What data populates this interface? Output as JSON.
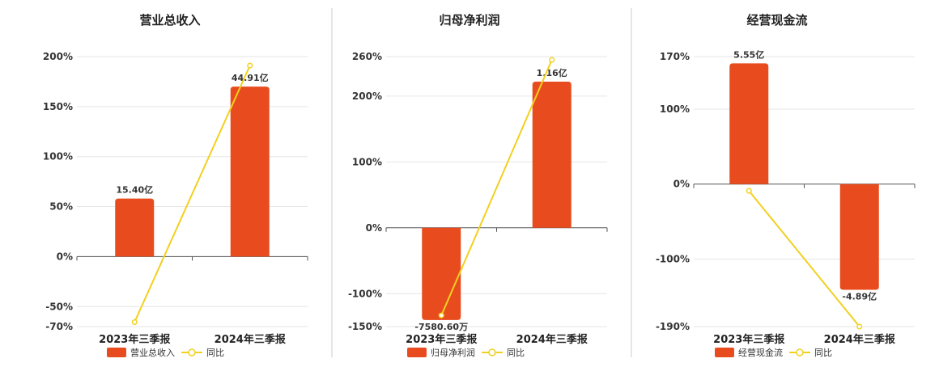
{
  "colors": {
    "bar": "#e84c1e",
    "line": "#f2d01f",
    "divider": "#cccccc"
  },
  "chart_data": [
    {
      "type": "bar",
      "title": "营业总收入",
      "categories": [
        "2023年三季报",
        "2024年三季报"
      ],
      "bar_labels": [
        "15.40亿",
        "44.91亿"
      ],
      "bar_values_pct": [
        58,
        170
      ],
      "line_values_pct": [
        -65.5,
        191
      ],
      "y_ticks": [
        "200%",
        "150%",
        "100%",
        "50%",
        "0%",
        "-50%",
        "-70%"
      ],
      "ylim": [
        -70,
        200
      ],
      "legend": [
        "营业总收入",
        "同比"
      ]
    },
    {
      "type": "bar",
      "title": "归母净利润",
      "categories": [
        "2023年三季报",
        "2024年三季报"
      ],
      "bar_labels": [
        "-7580.60万",
        "1.16亿"
      ],
      "bar_values_pct": [
        -140,
        222
      ],
      "line_values_pct": [
        -133,
        255
      ],
      "y_ticks": [
        "260%",
        "200%",
        "100%",
        "0%",
        "-100%",
        "-150%"
      ],
      "ylim": [
        -150,
        260
      ],
      "legend": [
        "归母净利润",
        "同比"
      ]
    },
    {
      "type": "bar",
      "title": "经营现金流",
      "categories": [
        "2023年三季报",
        "2024年三季报"
      ],
      "bar_labels": [
        "5.55亿",
        "-4.89亿"
      ],
      "bar_values_pct": [
        161,
        -141
      ],
      "line_values_pct": [
        -9,
        -190
      ],
      "y_ticks": [
        "170%",
        "100%",
        "0%",
        "-100%",
        "-190%"
      ],
      "ylim": [
        -190,
        170
      ],
      "legend": [
        "经营现金流",
        "同比"
      ]
    }
  ]
}
